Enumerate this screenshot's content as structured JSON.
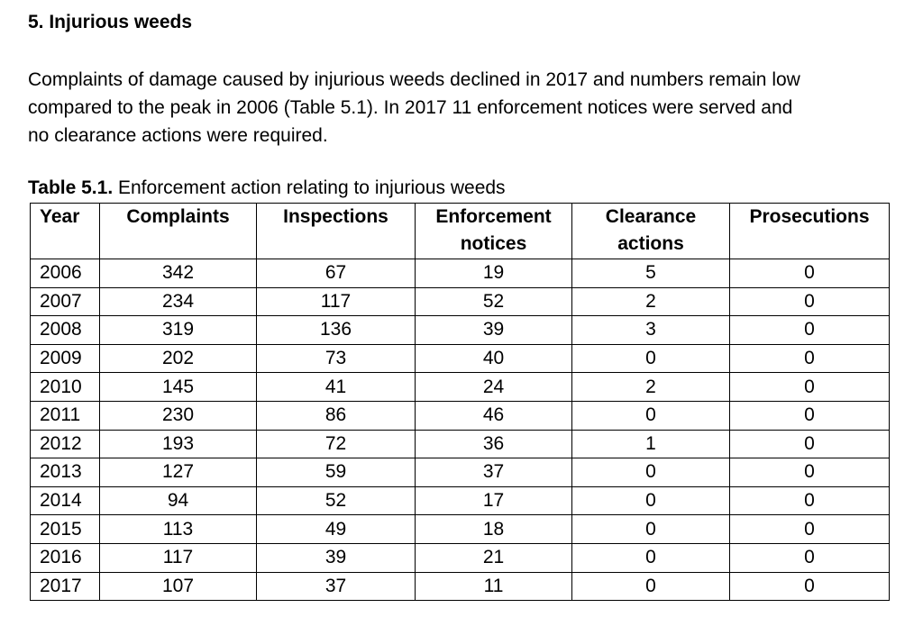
{
  "section": {
    "heading": "5. Injurious weeds",
    "paragraph_lines": [
      "Complaints of damage caused by injurious weeds declined in 2017 and numbers remain low",
      "compared to the peak in 2006 (Table 5.1). In 2017 11 enforcement notices were served and",
      "no clearance actions were required."
    ]
  },
  "table": {
    "caption_label": "Table 5.1.",
    "caption_text": " Enforcement action relating to injurious weeds",
    "headers": {
      "year": "Year",
      "complaints": "Complaints",
      "inspections": "Inspections",
      "enforcement_line1": "Enforcement",
      "enforcement_line2": "notices",
      "clearance_line1": "Clearance",
      "clearance_line2": "actions",
      "prosecutions": "Prosecutions"
    },
    "rows": [
      {
        "year": "2006",
        "complaints": "342",
        "inspections": "67",
        "enforcement_notices": "19",
        "clearance_actions": "5",
        "prosecutions": "0"
      },
      {
        "year": "2007",
        "complaints": "234",
        "inspections": "117",
        "enforcement_notices": "52",
        "clearance_actions": "2",
        "prosecutions": "0"
      },
      {
        "year": "2008",
        "complaints": "319",
        "inspections": "136",
        "enforcement_notices": "39",
        "clearance_actions": "3",
        "prosecutions": "0"
      },
      {
        "year": "2009",
        "complaints": "202",
        "inspections": "73",
        "enforcement_notices": "40",
        "clearance_actions": "0",
        "prosecutions": "0"
      },
      {
        "year": "2010",
        "complaints": "145",
        "inspections": "41",
        "enforcement_notices": "24",
        "clearance_actions": "2",
        "prosecutions": "0"
      },
      {
        "year": "2011",
        "complaints": "230",
        "inspections": "86",
        "enforcement_notices": "46",
        "clearance_actions": "0",
        "prosecutions": "0"
      },
      {
        "year": "2012",
        "complaints": "193",
        "inspections": "72",
        "enforcement_notices": "36",
        "clearance_actions": "1",
        "prosecutions": "0"
      },
      {
        "year": "2013",
        "complaints": "127",
        "inspections": "59",
        "enforcement_notices": "37",
        "clearance_actions": "0",
        "prosecutions": "0"
      },
      {
        "year": "2014",
        "complaints": "94",
        "inspections": "52",
        "enforcement_notices": "17",
        "clearance_actions": "0",
        "prosecutions": "0"
      },
      {
        "year": "2015",
        "complaints": "113",
        "inspections": "49",
        "enforcement_notices": "18",
        "clearance_actions": "0",
        "prosecutions": "0"
      },
      {
        "year": "2016",
        "complaints": "117",
        "inspections": "39",
        "enforcement_notices": "21",
        "clearance_actions": "0",
        "prosecutions": "0"
      },
      {
        "year": "2017",
        "complaints": "107",
        "inspections": "37",
        "enforcement_notices": "11",
        "clearance_actions": "0",
        "prosecutions": "0"
      }
    ]
  }
}
